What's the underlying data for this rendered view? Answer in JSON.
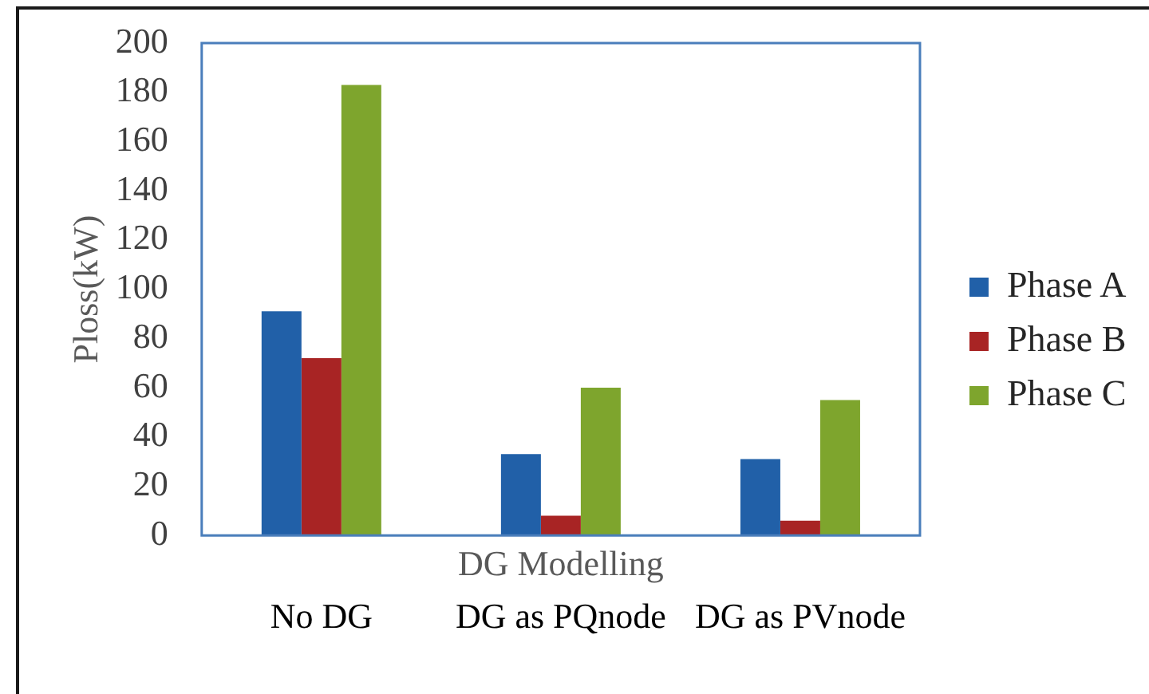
{
  "chart_data": {
    "type": "bar",
    "xlabel": "DG Modelling",
    "ylabel": "Ploss(kW)",
    "categories": [
      "No DG",
      "DG as PQnode",
      "DG as PVnode"
    ],
    "series": [
      {
        "name": "Phase A",
        "color": "#2160a8",
        "values": [
          91,
          33,
          31
        ]
      },
      {
        "name": "Phase B",
        "color": "#a82424",
        "values": [
          72,
          8,
          6
        ]
      },
      {
        "name": "Phase C",
        "color": "#7ea52d",
        "values": [
          183,
          60,
          55
        ]
      }
    ],
    "ylim": [
      0,
      200
    ],
    "yticks": [
      0,
      20,
      40,
      60,
      80,
      100,
      120,
      140,
      160,
      180,
      200
    ],
    "grid": false,
    "legend": "right"
  }
}
